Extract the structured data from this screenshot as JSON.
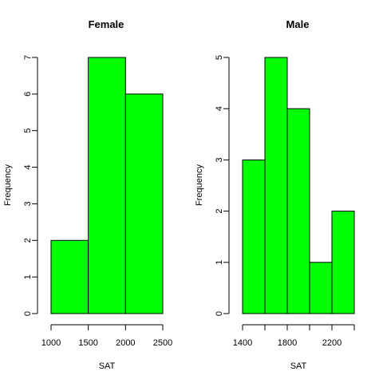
{
  "chart_data": [
    {
      "type": "bar",
      "title": "Female",
      "xlabel": "SAT",
      "ylabel": "Frequency",
      "bins": [
        [
          1000,
          1500
        ],
        [
          1500,
          2000
        ],
        [
          2000,
          2500
        ]
      ],
      "values": [
        2,
        7,
        6
      ],
      "xlim": [
        1000,
        2500
      ],
      "ylim": [
        0,
        7
      ],
      "xticks": [
        1000,
        1500,
        2000,
        2500
      ],
      "yticks": [
        0,
        1,
        2,
        3,
        4,
        5,
        6,
        7
      ],
      "bar_color": "#00ff00",
      "grid": false,
      "legend": "none"
    },
    {
      "type": "bar",
      "title": "Male",
      "xlabel": "SAT",
      "ylabel": "Frequency",
      "bins": [
        [
          1400,
          1600
        ],
        [
          1600,
          1800
        ],
        [
          1800,
          2000
        ],
        [
          2000,
          2200
        ],
        [
          2200,
          2400
        ]
      ],
      "values": [
        3,
        5,
        4,
        1,
        2
      ],
      "xlim": [
        1400,
        2400
      ],
      "ylim": [
        0,
        5
      ],
      "xticks": [
        1400,
        1600,
        1800,
        2000,
        2200,
        2400
      ],
      "xtick_labels": [
        "1400",
        "",
        "1800",
        "",
        "2200",
        ""
      ],
      "yticks": [
        0,
        1,
        2,
        3,
        4,
        5
      ],
      "bar_color": "#00ff00",
      "grid": false,
      "legend": "none"
    }
  ]
}
